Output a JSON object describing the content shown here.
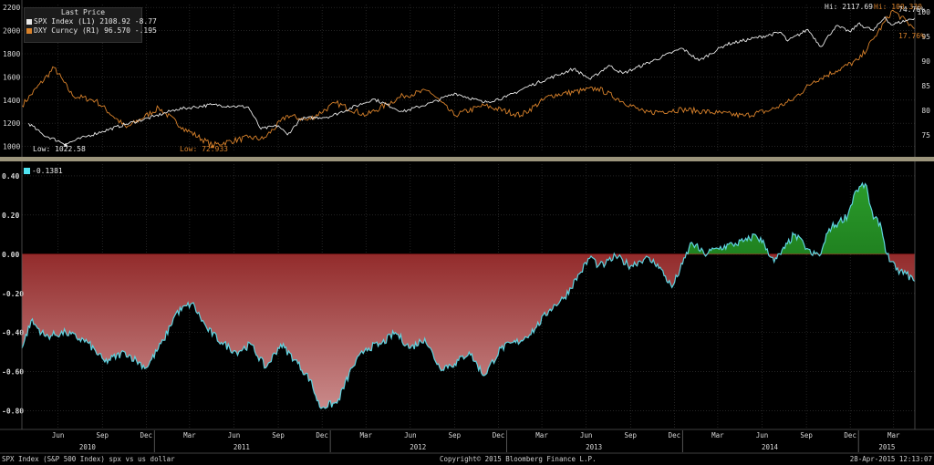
{
  "colors": {
    "spx": "#e8e8e8",
    "dxy": "#d9822b",
    "corr_line": "#5fd3e0",
    "neg_fill_top": "#7a0000",
    "neg_fill_bottom": "#c98a8a",
    "pos_fill_top": "#2a9a2a",
    "pos_fill_bottom": "#0b4d0b",
    "grid": "#3a3a3a",
    "panel_bg": "#000000",
    "legend_swatch_corr": "#4fe3f0"
  },
  "legend": {
    "header": "Last Price",
    "spx_text": "SPX Index  (L1)  2108.92  -8.77",
    "dxy_text": "DXY Curncy (R1) 96.570  -.195",
    "corr_text": "-0.1381"
  },
  "annotations": {
    "spx_low": "Low: 1022.58",
    "dxy_low": "Low: 72.933",
    "spx_hi": "Hi: 2117.69",
    "dxy_hi": "Hi: 100.330",
    "spx_last": "74.76%",
    "dxy_last": "17.76%"
  },
  "footer": {
    "left": "SPX Index (S&P 500 Index) spx vs us dollar",
    "center": "Copyright© 2015 Bloomberg Finance L.P.",
    "right": "28-Apr-2015 12:13:07"
  },
  "chart_data": [
    {
      "type": "line",
      "x_range": [
        "2010-04-01",
        "2015-04-28"
      ],
      "y_left_ticks": [
        1000,
        1200,
        1400,
        1600,
        1800,
        2000,
        2200
      ],
      "y_right_ticks": [
        75,
        80,
        85,
        90,
        95,
        100
      ],
      "grid": true,
      "series": [
        {
          "name": "SPX Index",
          "axis": "left",
          "x": [
            "2010-04-15",
            "2010-05-15",
            "2010-07-01",
            "2010-08-15",
            "2010-09-15",
            "2010-11-01",
            "2010-12-31",
            "2011-02-15",
            "2011-04-30",
            "2011-07-15",
            "2011-08-10",
            "2011-09-15",
            "2011-10-04",
            "2011-11-01",
            "2011-12-31",
            "2012-03-31",
            "2012-05-31",
            "2012-07-31",
            "2012-09-15",
            "2012-11-15",
            "2012-12-31",
            "2013-02-15",
            "2013-05-20",
            "2013-06-24",
            "2013-08-01",
            "2013-08-30",
            "2013-10-15",
            "2013-12-31",
            "2014-02-04",
            "2014-04-01",
            "2014-07-24",
            "2014-08-07",
            "2014-09-18",
            "2014-10-15",
            "2014-11-15",
            "2014-12-16",
            "2014-12-31",
            "2015-02-01",
            "2015-02-25",
            "2015-03-10",
            "2015-04-28"
          ],
          "values": [
            1200,
            1100,
            1022.58,
            1090,
            1130,
            1190,
            1258,
            1320,
            1360,
            1340,
            1150,
            1180,
            1100,
            1240,
            1258,
            1410,
            1300,
            1380,
            1460,
            1380,
            1426,
            1520,
            1670,
            1580,
            1700,
            1630,
            1710,
            1848,
            1741,
            1880,
            1985,
            1910,
            2010,
            1862,
            2040,
            1990,
            2060,
            2000,
            2117.69,
            2050,
            2108.92
          ]
        },
        {
          "name": "DXY Curncy",
          "axis": "right",
          "x": [
            "2010-04-01",
            "2010-06-07",
            "2010-07-15",
            "2010-09-01",
            "2010-11-04",
            "2011-01-10",
            "2011-03-01",
            "2011-05-01",
            "2011-07-15",
            "2011-08-15",
            "2011-10-04",
            "2011-11-15",
            "2012-01-13",
            "2012-03-15",
            "2012-05-31",
            "2012-07-24",
            "2012-09-14",
            "2012-11-15",
            "2013-01-31",
            "2013-04-01",
            "2013-07-09",
            "2013-10-15",
            "2013-12-31",
            "2014-03-15",
            "2014-05-08",
            "2014-07-01",
            "2014-08-15",
            "2014-10-01",
            "2014-11-15",
            "2015-01-02",
            "2015-02-01",
            "2015-03-13",
            "2015-04-28"
          ],
          "values": [
            81,
            88.7,
            83,
            82,
            76.5,
            80.5,
            76.5,
            72.933,
            74.5,
            74.2,
            79,
            78,
            81.5,
            79,
            83,
            84,
            79,
            81,
            79,
            83,
            84.5,
            79.5,
            80.2,
            79.5,
            78.9,
            80,
            82,
            86,
            88,
            90.3,
            94.5,
            100.33,
            96.57
          ]
        }
      ]
    },
    {
      "type": "area",
      "x_range": [
        "2010-04-01",
        "2015-04-28"
      ],
      "y_ticks": [
        -0.8,
        -0.6,
        -0.4,
        -0.2,
        0.0,
        0.2,
        0.4
      ],
      "x_month_labels": [
        "Jun",
        "Sep",
        "Dec",
        "Mar",
        "Jun",
        "Sep",
        "Dec",
        "Mar",
        "Jun",
        "Sep",
        "Dec",
        "Mar",
        "Jun",
        "Sep",
        "Dec",
        "Mar",
        "Jun",
        "Sep",
        "Dec",
        "Mar"
      ],
      "x_year_labels": [
        "2010",
        "2011",
        "2012",
        "2013",
        "2014",
        "2015"
      ],
      "grid": true,
      "series": [
        {
          "name": "",
          "x": [
            "2010-04-01",
            "2010-04-20",
            "2010-05-20",
            "2010-07-01",
            "2010-08-15",
            "2010-09-20",
            "2010-11-01",
            "2010-12-15",
            "2011-01-20",
            "2011-02-15",
            "2011-03-20",
            "2011-04-20",
            "2011-05-20",
            "2011-06-20",
            "2011-07-20",
            "2011-08-20",
            "2011-09-20",
            "2011-10-20",
            "2011-11-20",
            "2011-12-10",
            "2012-01-15",
            "2012-02-15",
            "2012-03-15",
            "2012-04-15",
            "2012-05-15",
            "2012-06-15",
            "2012-07-15",
            "2012-08-15",
            "2012-09-15",
            "2012-10-15",
            "2012-11-15",
            "2012-12-20",
            "2013-01-31",
            "2013-03-01",
            "2013-04-01",
            "2013-05-01",
            "2013-06-01",
            "2013-06-25",
            "2013-07-10",
            "2013-07-25",
            "2013-08-15",
            "2013-09-15",
            "2013-10-15",
            "2013-11-10",
            "2013-12-10",
            "2014-01-01",
            "2014-01-20",
            "2014-02-15",
            "2014-03-15",
            "2014-04-15",
            "2014-05-15",
            "2014-06-01",
            "2014-06-20",
            "2014-07-10",
            "2014-08-01",
            "2014-08-20",
            "2014-09-10",
            "2014-09-25",
            "2014-10-15",
            "2014-11-01",
            "2014-11-20",
            "2014-12-10",
            "2014-12-25",
            "2015-01-15",
            "2015-02-01",
            "2015-02-15",
            "2015-03-01",
            "2015-03-20",
            "2015-04-10",
            "2015-04-28"
          ],
          "values": [
            -0.48,
            -0.34,
            -0.42,
            -0.4,
            -0.45,
            -0.55,
            -0.5,
            -0.58,
            -0.44,
            -0.3,
            -0.25,
            -0.38,
            -0.45,
            -0.5,
            -0.46,
            -0.58,
            -0.46,
            -0.54,
            -0.64,
            -0.78,
            -0.76,
            -0.58,
            -0.48,
            -0.46,
            -0.4,
            -0.48,
            -0.43,
            -0.58,
            -0.56,
            -0.5,
            -0.62,
            -0.48,
            -0.44,
            -0.38,
            -0.28,
            -0.22,
            -0.1,
            -0.01,
            -0.06,
            -0.05,
            -0.01,
            -0.06,
            -0.02,
            -0.05,
            -0.17,
            -0.05,
            0.06,
            0.0,
            0.03,
            0.05,
            0.07,
            0.1,
            0.05,
            -0.04,
            0.03,
            0.1,
            0.05,
            0.0,
            0.0,
            0.13,
            0.16,
            0.2,
            0.32,
            0.36,
            0.18,
            0.16,
            0.0,
            -0.08,
            -0.1,
            -0.1381
          ]
        }
      ]
    }
  ]
}
